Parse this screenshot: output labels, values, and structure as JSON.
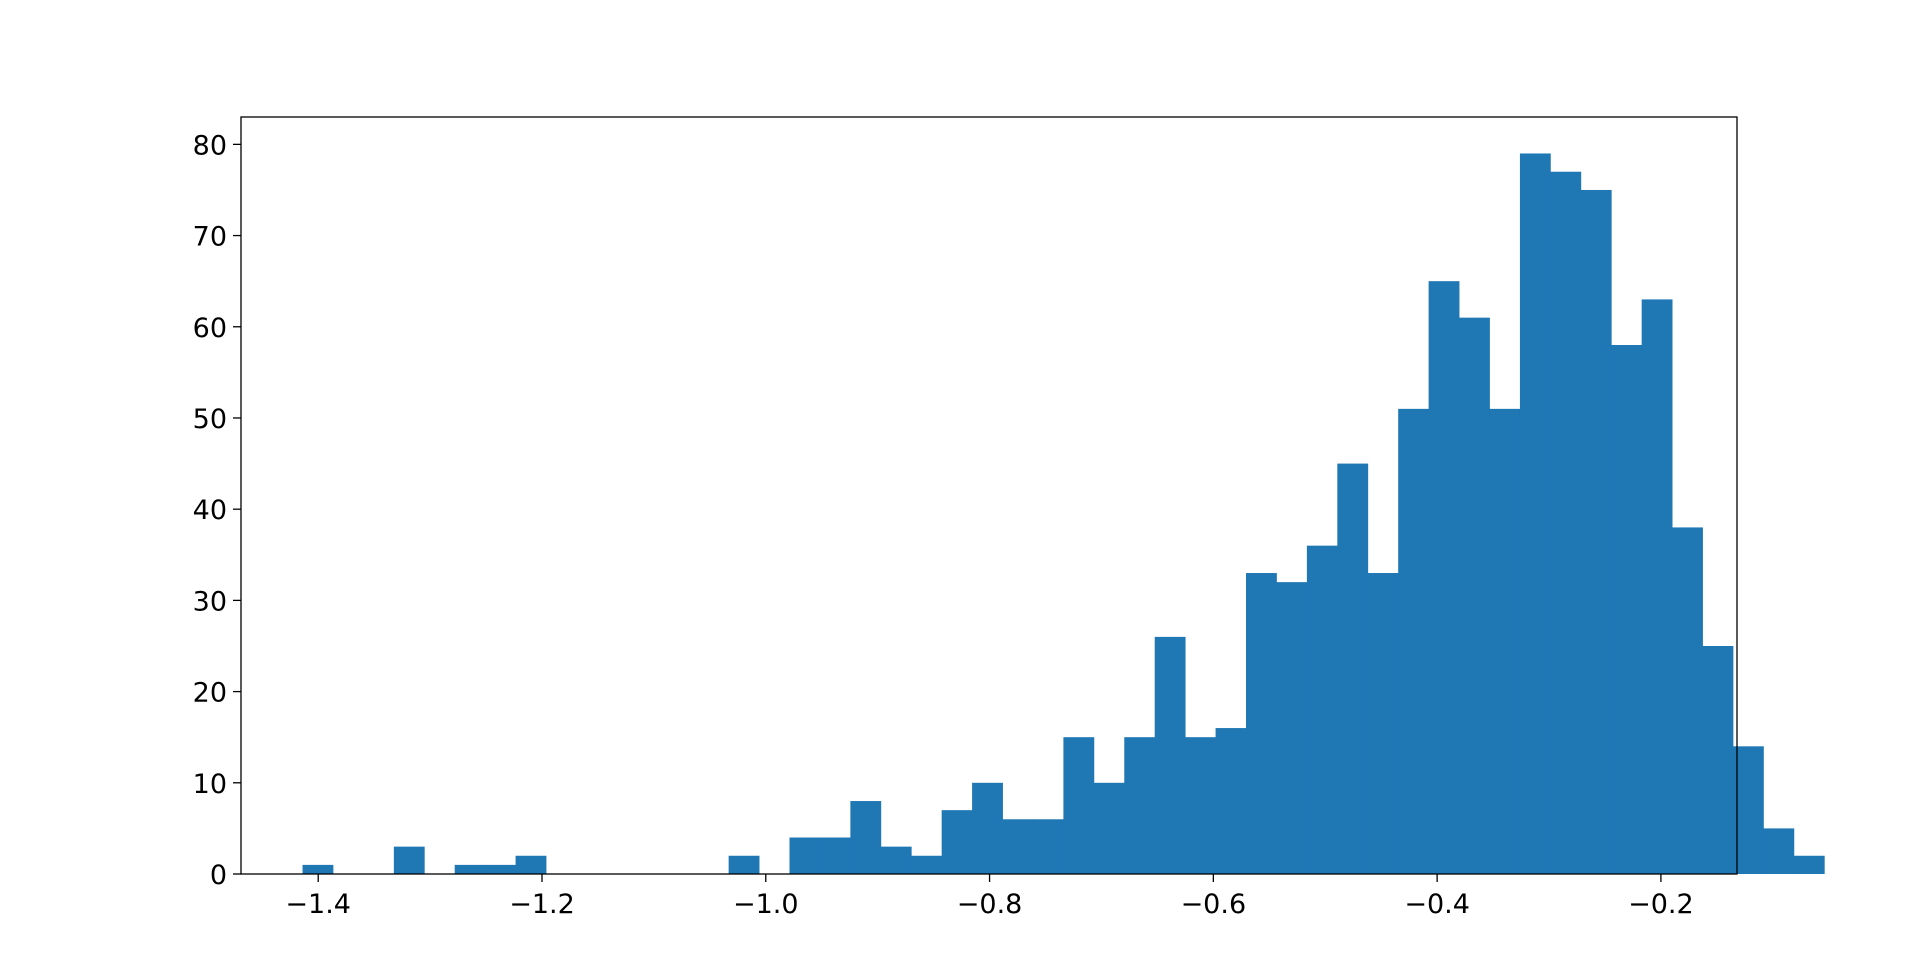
{
  "chart_data": {
    "type": "bar",
    "histogram": true,
    "title": "",
    "xlabel": "",
    "ylabel": "",
    "bin_start": -1.414,
    "bin_width": 0.0272,
    "values": [
      1,
      0,
      0,
      3,
      0,
      1,
      1,
      2,
      0,
      0,
      0,
      0,
      0,
      0,
      2,
      0,
      4,
      4,
      8,
      3,
      2,
      7,
      10,
      6,
      6,
      15,
      10,
      15,
      26,
      15,
      16,
      33,
      32,
      36,
      45,
      33,
      51,
      65,
      61,
      51,
      79,
      77,
      75,
      58,
      63,
      38,
      25,
      14,
      5,
      2
    ],
    "xlim": [
      -1.469,
      -0.132
    ],
    "ylim": [
      0,
      83
    ],
    "x_ticks": [
      -1.4,
      -1.2,
      -1.0,
      -0.8,
      -0.6,
      -0.4,
      -0.2
    ],
    "x_tick_labels": [
      "−1.4",
      "−1.2",
      "−1.0",
      "−0.8",
      "−0.6",
      "−0.4",
      "−0.2"
    ],
    "y_ticks": [
      0,
      10,
      20,
      30,
      40,
      50,
      60,
      70,
      80
    ],
    "y_tick_labels": [
      "0",
      "10",
      "20",
      "30",
      "40",
      "50",
      "60",
      "70",
      "80"
    ],
    "grid": false,
    "legend": "none",
    "bar_color": "#1f77b4"
  }
}
